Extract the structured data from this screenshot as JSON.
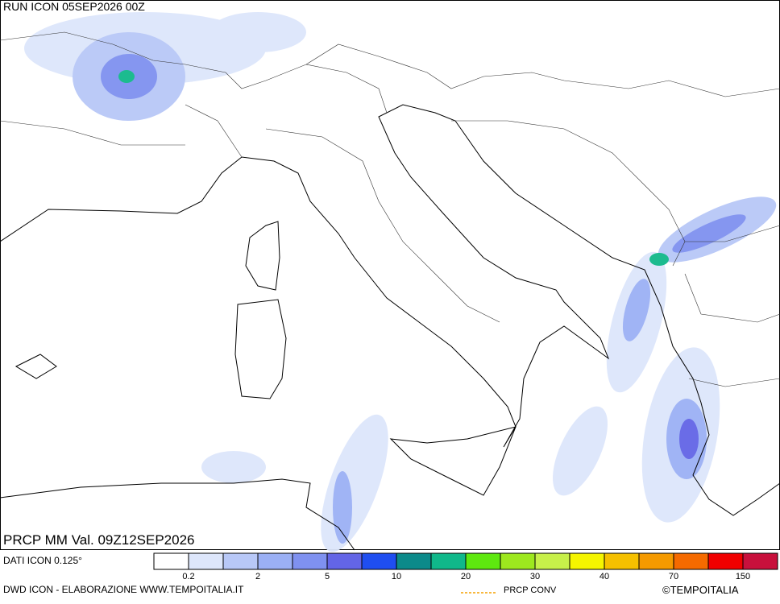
{
  "header": {
    "run": "RUN ICON 05SEP2026 00Z",
    "field": "PRCP MM Val. 09Z12SEP2026"
  },
  "colorbar": {
    "colors": [
      "#ffffff",
      "#dde6fb",
      "#b8c8f7",
      "#9bb0f5",
      "#7f91f0",
      "#6365e6",
      "#1f4ef0",
      "#0c8a8a",
      "#10b88a",
      "#5ee80f",
      "#9de81e",
      "#c7f04a",
      "#f5f500",
      "#f5c000",
      "#f59a00",
      "#f56a00",
      "#f00000",
      "#c8103c"
    ],
    "labels": [
      0.2,
      2,
      5,
      10,
      20,
      30,
      40,
      70,
      150
    ]
  },
  "footer": {
    "source": "DATI ICON 0.125°",
    "credit": "DWD ICON - ELABORAZIONE WWW.TEMPOITALIA.IT",
    "conv_legend": "PRCP CONV",
    "copyright": "©TEMPOITALIA"
  }
}
